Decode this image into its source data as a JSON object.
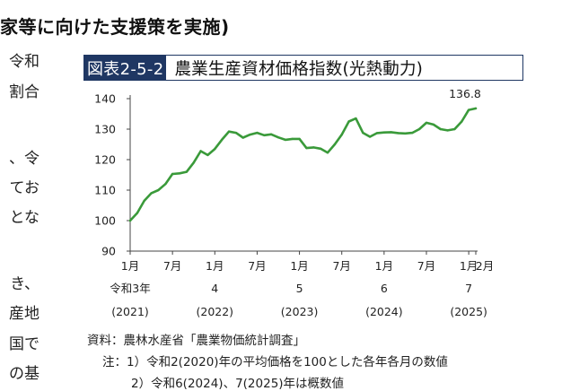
{
  "heading": "家等に向けた支援策を実施)",
  "body_lines": [
    "令和",
    "割合",
    "",
    "、令",
    "てお",
    "とな",
    "",
    "き、",
    "産地",
    "国で",
    "の基"
  ],
  "figure": {
    "id": "図表2-5-2",
    "title": "農業生産資材価格指数(光熱動力)"
  },
  "chart_data": {
    "type": "line",
    "title": "",
    "xlabel": "",
    "ylabel": "",
    "ylim": [
      90,
      140
    ],
    "y_ticks": [
      90,
      100,
      110,
      120,
      130,
      140
    ],
    "grid": false,
    "x_tick_labels": [
      "1月",
      "7月",
      "1月",
      "7月",
      "1月",
      "7月",
      "1月",
      "7月",
      "1月",
      "2月"
    ],
    "x_tick_months": [
      0,
      6,
      12,
      18,
      24,
      30,
      36,
      42,
      48,
      49
    ],
    "year_labels": [
      {
        "month": 0,
        "era": "令和3年",
        "western": "(2021)"
      },
      {
        "month": 12,
        "era": "4",
        "western": "(2022)"
      },
      {
        "month": 24,
        "era": "5",
        "western": "(2023)"
      },
      {
        "month": 36,
        "era": "6",
        "western": "(2024)"
      },
      {
        "month": 48,
        "era": "7",
        "western": "(2025)"
      }
    ],
    "series": [
      {
        "color": "#3a9a3a",
        "x": [
          "2021-01",
          "2021-02",
          "2021-03",
          "2021-04",
          "2021-05",
          "2021-06",
          "2021-07",
          "2021-08",
          "2021-09",
          "2021-10",
          "2021-11",
          "2021-12",
          "2022-01",
          "2022-02",
          "2022-03",
          "2022-04",
          "2022-05",
          "2022-06",
          "2022-07",
          "2022-08",
          "2022-09",
          "2022-10",
          "2022-11",
          "2022-12",
          "2023-01",
          "2023-02",
          "2023-03",
          "2023-04",
          "2023-05",
          "2023-06",
          "2023-07",
          "2023-08",
          "2023-09",
          "2023-10",
          "2023-11",
          "2023-12",
          "2024-01",
          "2024-02",
          "2024-03",
          "2024-04",
          "2024-05",
          "2024-06",
          "2024-07",
          "2024-08",
          "2024-09",
          "2024-10",
          "2024-11",
          "2024-12",
          "2025-01",
          "2025-02"
        ],
        "values": [
          100,
          102.5,
          106.5,
          109,
          110,
          112,
          115.3,
          115.5,
          116,
          119,
          122.8,
          121.5,
          123.5,
          126.5,
          129.2,
          128.8,
          127.2,
          128.2,
          128.8,
          128,
          128.3,
          127.3,
          126.5,
          126.8,
          126.8,
          123.8,
          124,
          123.6,
          122.3,
          125,
          128.2,
          132.5,
          133.5,
          128.8,
          127.5,
          128.7,
          128.9,
          129,
          128.7,
          128.6,
          128.8,
          130,
          132.1,
          131.5,
          130,
          129.6,
          130,
          132.5,
          136.3,
          136.8
        ]
      }
    ],
    "end_label": "136.8"
  },
  "notes": {
    "source": "資料：農林水産省「農業物価統計調査」",
    "note1": "注：1）令和2(2020)年の平均価格を100とした各年各月の数値",
    "note2": "2）令和6(2024)、7(2025)年は概数値"
  }
}
